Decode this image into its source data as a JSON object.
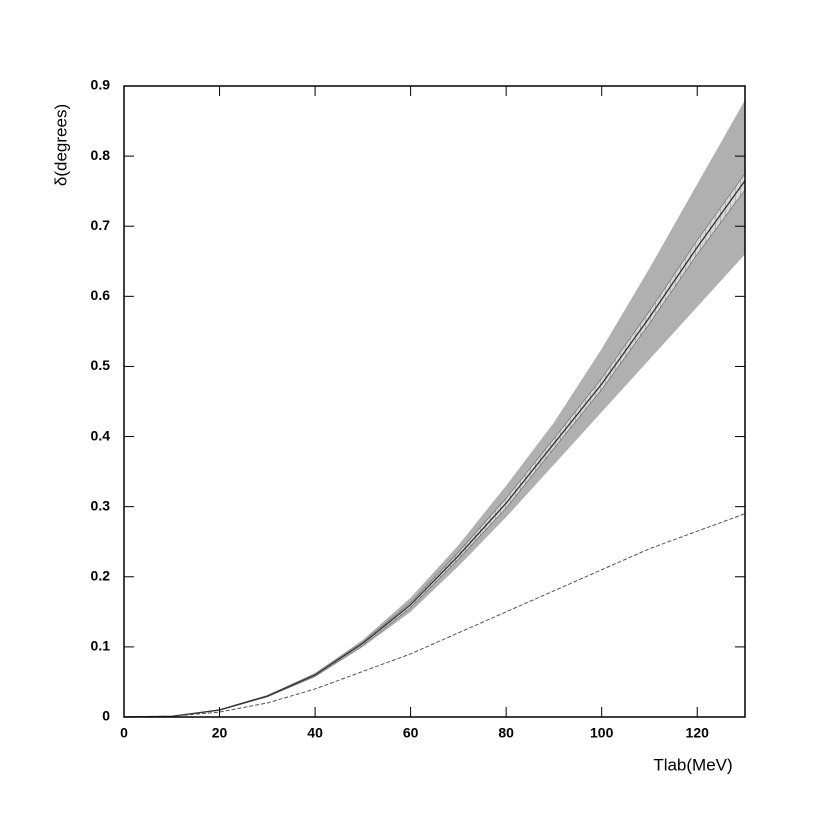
{
  "chart_data": {
    "type": "line",
    "x_label": "Tlab(MeV)",
    "y_label": "δ(degrees)",
    "xlim": [
      0,
      130
    ],
    "xticks": [
      0,
      20,
      40,
      60,
      80,
      100,
      120
    ],
    "ylim": [
      0,
      0.9
    ],
    "yticks": [
      0,
      0.1,
      0.2,
      0.3,
      0.4,
      0.5,
      0.6,
      0.7,
      0.8,
      0.9
    ],
    "x": [
      0,
      10,
      20,
      30,
      40,
      50,
      60,
      70,
      80,
      90,
      100,
      110,
      120,
      130
    ],
    "bands": [
      {
        "color": "#b0b0b0",
        "hatch": false,
        "upper": [
          0,
          0.001,
          0.011,
          0.031,
          0.063,
          0.11,
          0.17,
          0.245,
          0.33,
          0.42,
          0.525,
          0.64,
          0.76,
          0.88
        ],
        "lower": [
          0,
          0.001,
          0.009,
          0.028,
          0.057,
          0.1,
          0.15,
          0.215,
          0.285,
          0.36,
          0.435,
          0.51,
          0.585,
          0.66
        ]
      },
      {
        "color": "#d8d8d8",
        "hatch": true,
        "upper": [
          0,
          0.001,
          0.0105,
          0.0305,
          0.061,
          0.107,
          0.163,
          0.235,
          0.312,
          0.397,
          0.483,
          0.579,
          0.68,
          0.775
        ],
        "lower": [
          0,
          0.001,
          0.0095,
          0.029,
          0.058,
          0.102,
          0.156,
          0.225,
          0.298,
          0.383,
          0.467,
          0.561,
          0.66,
          0.752
        ]
      }
    ],
    "series": [
      {
        "color": "#333333",
        "dashed": false,
        "values": [
          0,
          0.001,
          0.01,
          0.03,
          0.06,
          0.105,
          0.16,
          0.23,
          0.305,
          0.39,
          0.475,
          0.57,
          0.67,
          0.765
        ]
      },
      {
        "color": "#555555",
        "dashed": true,
        "values": [
          0,
          0.001,
          0.007,
          0.02,
          0.04,
          0.065,
          0.09,
          0.12,
          0.15,
          0.18,
          0.21,
          0.24,
          0.265,
          0.29
        ]
      }
    ]
  }
}
